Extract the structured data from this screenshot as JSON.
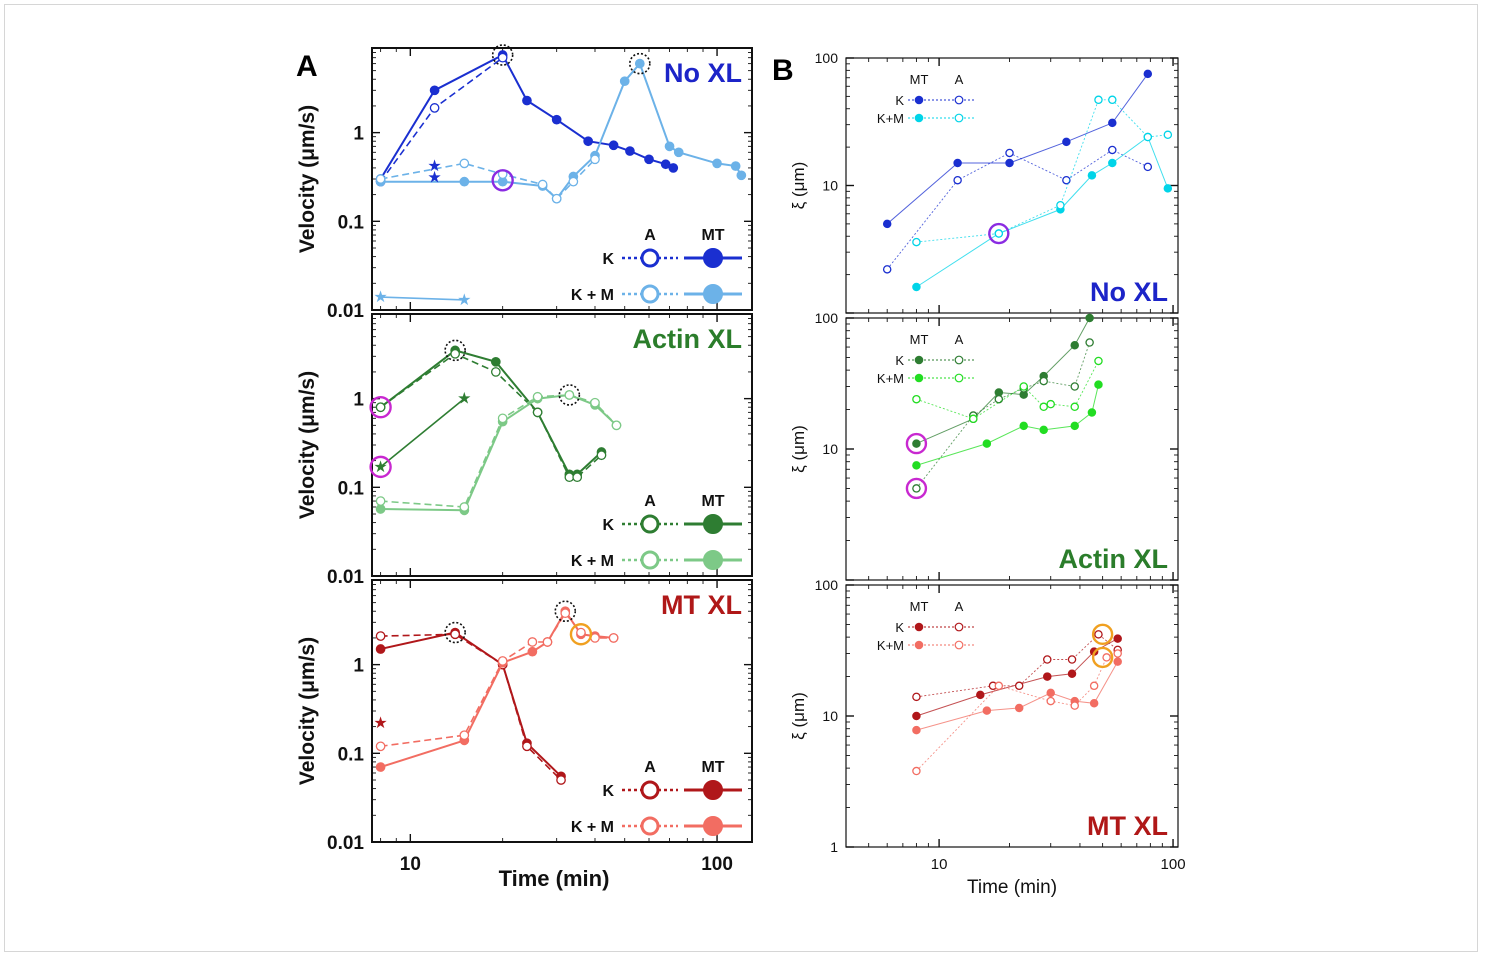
{
  "figure": {
    "panel_a_label": "A",
    "panel_b_label": "B"
  },
  "colors": {
    "nox_dark": "#1a2fd0",
    "nox_light": "#6cb2e8",
    "actin_dark": "#2e7d32",
    "actin_light": "#7dc987",
    "mt_dark": "#b0171a",
    "mt_light": "#f26d62",
    "b_actin_light": "#22dd22",
    "b_nox_light": "#00d4e8",
    "highlight_magenta": "#c828d0",
    "highlight_purple": "#8a2be2",
    "highlight_orange": "#f0a020",
    "title_nox": "#1c24c8",
    "title_actin": "#2b7d2b",
    "title_mt": "#b01818"
  },
  "legend_text": {
    "a": "A",
    "mt": "MT",
    "k": "K",
    "km_a": "K + M",
    "km_b": "K+M"
  },
  "chart_data": [
    {
      "id": "A_noxl",
      "type": "line",
      "title": "No XL",
      "xlabel": "",
      "ylabel": "Velocity (μm/s)",
      "x_scale": "log",
      "y_scale": "log",
      "xlim": [
        7.5,
        130
      ],
      "ylim": [
        0.01,
        9
      ],
      "ytick_labels": [
        "0.01",
        "0.1",
        "1"
      ],
      "yticks": [
        0.01,
        0.1,
        1
      ],
      "series": [
        {
          "key": "K_MT",
          "x": [
            8,
            12,
            20,
            24,
            30,
            38,
            46,
            52,
            60,
            68,
            72
          ],
          "y": [
            0.3,
            3.0,
            7.5,
            2.3,
            1.4,
            0.8,
            0.72,
            0.62,
            0.5,
            0.44,
            0.4
          ]
        },
        {
          "key": "K_A",
          "x": [
            8,
            12,
            20
          ],
          "y": [
            0.28,
            1.9,
            7.0
          ]
        },
        {
          "key": "KM_MT",
          "x": [
            8,
            15,
            20,
            27,
            30,
            34,
            40,
            50,
            56,
            70,
            75,
            100,
            115,
            120
          ],
          "y": [
            0.28,
            0.28,
            0.28,
            0.25,
            0.18,
            0.32,
            0.55,
            3.8,
            6.0,
            0.7,
            0.6,
            0.45,
            0.42,
            0.33
          ]
        },
        {
          "key": "KM_A",
          "x": [
            8,
            15,
            20,
            27,
            30,
            34,
            40
          ],
          "y": [
            0.3,
            0.45,
            0.34,
            0.26,
            0.18,
            0.28,
            0.5
          ]
        },
        {
          "key": "star_light_line",
          "x": [
            8,
            15
          ],
          "y": [
            0.014,
            0.013
          ]
        },
        {
          "key": "star_dark",
          "x": [
            12,
            12
          ],
          "y": [
            0.42,
            0.31
          ]
        }
      ],
      "peaks": [
        {
          "x": 20,
          "y": 7.5
        },
        {
          "x": 56,
          "y": 6.0
        }
      ],
      "highlights": [
        {
          "x": 20,
          "y": 0.29,
          "color": "purple"
        }
      ]
    },
    {
      "id": "A_actin",
      "type": "line",
      "title": "Actin XL",
      "xlabel": "",
      "ylabel": "Velocity (μm/s)",
      "x_scale": "log",
      "y_scale": "log",
      "xlim": [
        7.5,
        130
      ],
      "ylim": [
        0.01,
        9
      ],
      "ytick_labels": [
        "0.01",
        "0.1",
        "1"
      ],
      "yticks": [
        0.01,
        0.1,
        1
      ],
      "series": [
        {
          "key": "K_MT",
          "x": [
            8,
            14,
            19,
            26,
            33,
            35,
            42
          ],
          "y": [
            0.8,
            3.5,
            2.6,
            0.7,
            0.14,
            0.14,
            0.25
          ]
        },
        {
          "key": "K_A",
          "x": [
            8,
            14,
            19,
            26,
            33,
            35,
            42
          ],
          "y": [
            0.8,
            3.2,
            2.0,
            0.7,
            0.13,
            0.13,
            0.23
          ]
        },
        {
          "key": "KM_MT",
          "x": [
            8,
            15,
            20,
            26,
            33,
            40,
            47
          ],
          "y": [
            0.057,
            0.055,
            0.55,
            1.0,
            1.1,
            0.85,
            0.5
          ]
        },
        {
          "key": "KM_A",
          "x": [
            8,
            15,
            20,
            26,
            33,
            40,
            47
          ],
          "y": [
            0.07,
            0.06,
            0.6,
            1.05,
            1.1,
            0.9,
            0.5
          ]
        },
        {
          "key": "star_dark",
          "x": [
            8,
            15
          ],
          "y": [
            0.17,
            1.0
          ]
        }
      ],
      "peaks": [
        {
          "x": 14,
          "y": 3.5
        },
        {
          "x": 33,
          "y": 1.1
        }
      ],
      "highlights": [
        {
          "x": 8,
          "y": 0.8,
          "color": "magenta"
        },
        {
          "x": 8,
          "y": 0.17,
          "color": "magenta"
        }
      ]
    },
    {
      "id": "A_mt",
      "type": "line",
      "title": "MT XL",
      "xlabel": "Time (min)",
      "ylabel": "Velocity (μm/s)",
      "x_scale": "log",
      "y_scale": "log",
      "xlim": [
        7.5,
        130
      ],
      "ylim": [
        0.01,
        9
      ],
      "ytick_labels": [
        "0.01",
        "0.1",
        "1"
      ],
      "yticks": [
        0.01,
        0.1,
        1
      ],
      "xtick_labels": [
        "10",
        "100"
      ],
      "xticks": [
        10,
        100
      ],
      "series": [
        {
          "key": "K_MT",
          "x": [
            8,
            14,
            20,
            24,
            31
          ],
          "y": [
            1.5,
            2.3,
            1.0,
            0.13,
            0.055
          ]
        },
        {
          "key": "K_A",
          "x": [
            8,
            14,
            20,
            24,
            31
          ],
          "y": [
            2.1,
            2.2,
            1.0,
            0.12,
            0.05
          ]
        },
        {
          "key": "KM_MT",
          "x": [
            8,
            15,
            20,
            25,
            28,
            32,
            36,
            40,
            46
          ],
          "y": [
            0.07,
            0.14,
            1.05,
            1.4,
            1.8,
            4.0,
            2.2,
            2.1,
            2.0
          ]
        },
        {
          "key": "KM_A",
          "x": [
            8,
            15,
            20,
            25,
            28,
            32,
            36,
            40,
            46
          ],
          "y": [
            0.12,
            0.16,
            1.1,
            1.8,
            1.8,
            3.8,
            2.3,
            2.0,
            2.0
          ]
        },
        {
          "key": "star_dark",
          "x": [
            8
          ],
          "y": [
            0.22
          ]
        }
      ],
      "peaks": [
        {
          "x": 14,
          "y": 2.3
        },
        {
          "x": 32,
          "y": 4.0
        }
      ],
      "highlights": [
        {
          "x": 36,
          "y": 2.2,
          "color": "orange"
        }
      ]
    },
    {
      "id": "B_noxl",
      "type": "line",
      "title": "No XL",
      "xlabel": "",
      "ylabel": "ξ (μm)",
      "x_scale": "log",
      "y_scale": "log",
      "xlim": [
        4,
        105
      ],
      "ylim": [
        1,
        100
      ],
      "ytick_labels": [
        "10",
        "100"
      ],
      "yticks": [
        10,
        100
      ],
      "series": [
        {
          "key": "K_MT",
          "x": [
            6,
            12,
            20,
            35,
            55,
            78
          ],
          "y": [
            5,
            15,
            15,
            22,
            31,
            75
          ]
        },
        {
          "key": "K_A",
          "x": [
            6,
            12,
            20,
            35,
            55,
            78
          ],
          "y": [
            2.2,
            11,
            18,
            11,
            19,
            14
          ]
        },
        {
          "key": "KM_MT",
          "x": [
            8,
            18,
            33,
            45,
            55,
            78,
            95
          ],
          "y": [
            1.6,
            4.2,
            6.5,
            12,
            15,
            24,
            9.5
          ]
        },
        {
          "key": "KM_A",
          "x": [
            8,
            18,
            33,
            48,
            55,
            78,
            95
          ],
          "y": [
            3.6,
            4.2,
            7,
            47,
            47,
            24,
            25
          ]
        }
      ],
      "highlights": [
        {
          "x": 18,
          "y": 4.2,
          "color": "purple"
        }
      ]
    },
    {
      "id": "B_actin",
      "type": "line",
      "title": "Actin XL",
      "xlabel": "",
      "ylabel": "ξ (μm)",
      "x_scale": "log",
      "y_scale": "log",
      "xlim": [
        4,
        105
      ],
      "ylim": [
        1,
        100
      ],
      "ytick_labels": [
        "10",
        "100"
      ],
      "yticks": [
        10,
        100
      ],
      "series": [
        {
          "key": "K_MT",
          "x": [
            8,
            14,
            18,
            23,
            28,
            38,
            44
          ],
          "y": [
            11,
            17,
            27,
            26,
            36,
            62,
            100
          ]
        },
        {
          "key": "K_A",
          "x": [
            8,
            14,
            18,
            23,
            28,
            38,
            44
          ],
          "y": [
            5,
            18,
            24,
            29,
            33,
            30,
            65
          ]
        },
        {
          "key": "KM_MT",
          "x": [
            8,
            16,
            23,
            28,
            38,
            45,
            48
          ],
          "y": [
            7.5,
            11,
            15,
            14,
            15,
            19,
            31
          ]
        },
        {
          "key": "KM_A",
          "x": [
            8,
            14,
            23,
            28,
            30,
            38,
            48
          ],
          "y": [
            24,
            17,
            30,
            21,
            22,
            21,
            47
          ]
        }
      ],
      "highlights": [
        {
          "x": 8,
          "y": 11,
          "color": "magenta"
        },
        {
          "x": 8,
          "y": 5,
          "color": "magenta"
        }
      ]
    },
    {
      "id": "B_mt",
      "type": "line",
      "title": "MT XL",
      "xlabel": "Time (min)",
      "ylabel": "ξ (μm)",
      "x_scale": "log",
      "y_scale": "log",
      "xlim": [
        4,
        105
      ],
      "ylim": [
        1,
        100
      ],
      "ytick_labels": [
        "1",
        "10",
        "100"
      ],
      "yticks": [
        1,
        10,
        100
      ],
      "xtick_labels": [
        "10",
        "100"
      ],
      "xticks": [
        10,
        100
      ],
      "series": [
        {
          "key": "K_MT",
          "x": [
            8,
            15,
            29,
            37,
            46,
            58
          ],
          "y": [
            10,
            14.5,
            20,
            21,
            31,
            39
          ]
        },
        {
          "key": "K_A",
          "x": [
            8,
            17,
            22,
            29,
            37,
            48,
            58
          ],
          "y": [
            14,
            17,
            17,
            27,
            27,
            42,
            32
          ]
        },
        {
          "key": "KM_MT",
          "x": [
            8,
            16,
            22,
            30,
            38,
            46,
            58
          ],
          "y": [
            7.8,
            11,
            11.5,
            15,
            13,
            12.5,
            26
          ]
        },
        {
          "key": "KM_A",
          "x": [
            8,
            18,
            30,
            38,
            46,
            52,
            58
          ],
          "y": [
            3.8,
            17,
            13,
            12,
            17,
            28,
            30
          ]
        }
      ],
      "highlights": [
        {
          "x": 50,
          "y": 42,
          "color": "orange"
        },
        {
          "x": 50,
          "y": 28,
          "color": "orange"
        }
      ]
    }
  ]
}
